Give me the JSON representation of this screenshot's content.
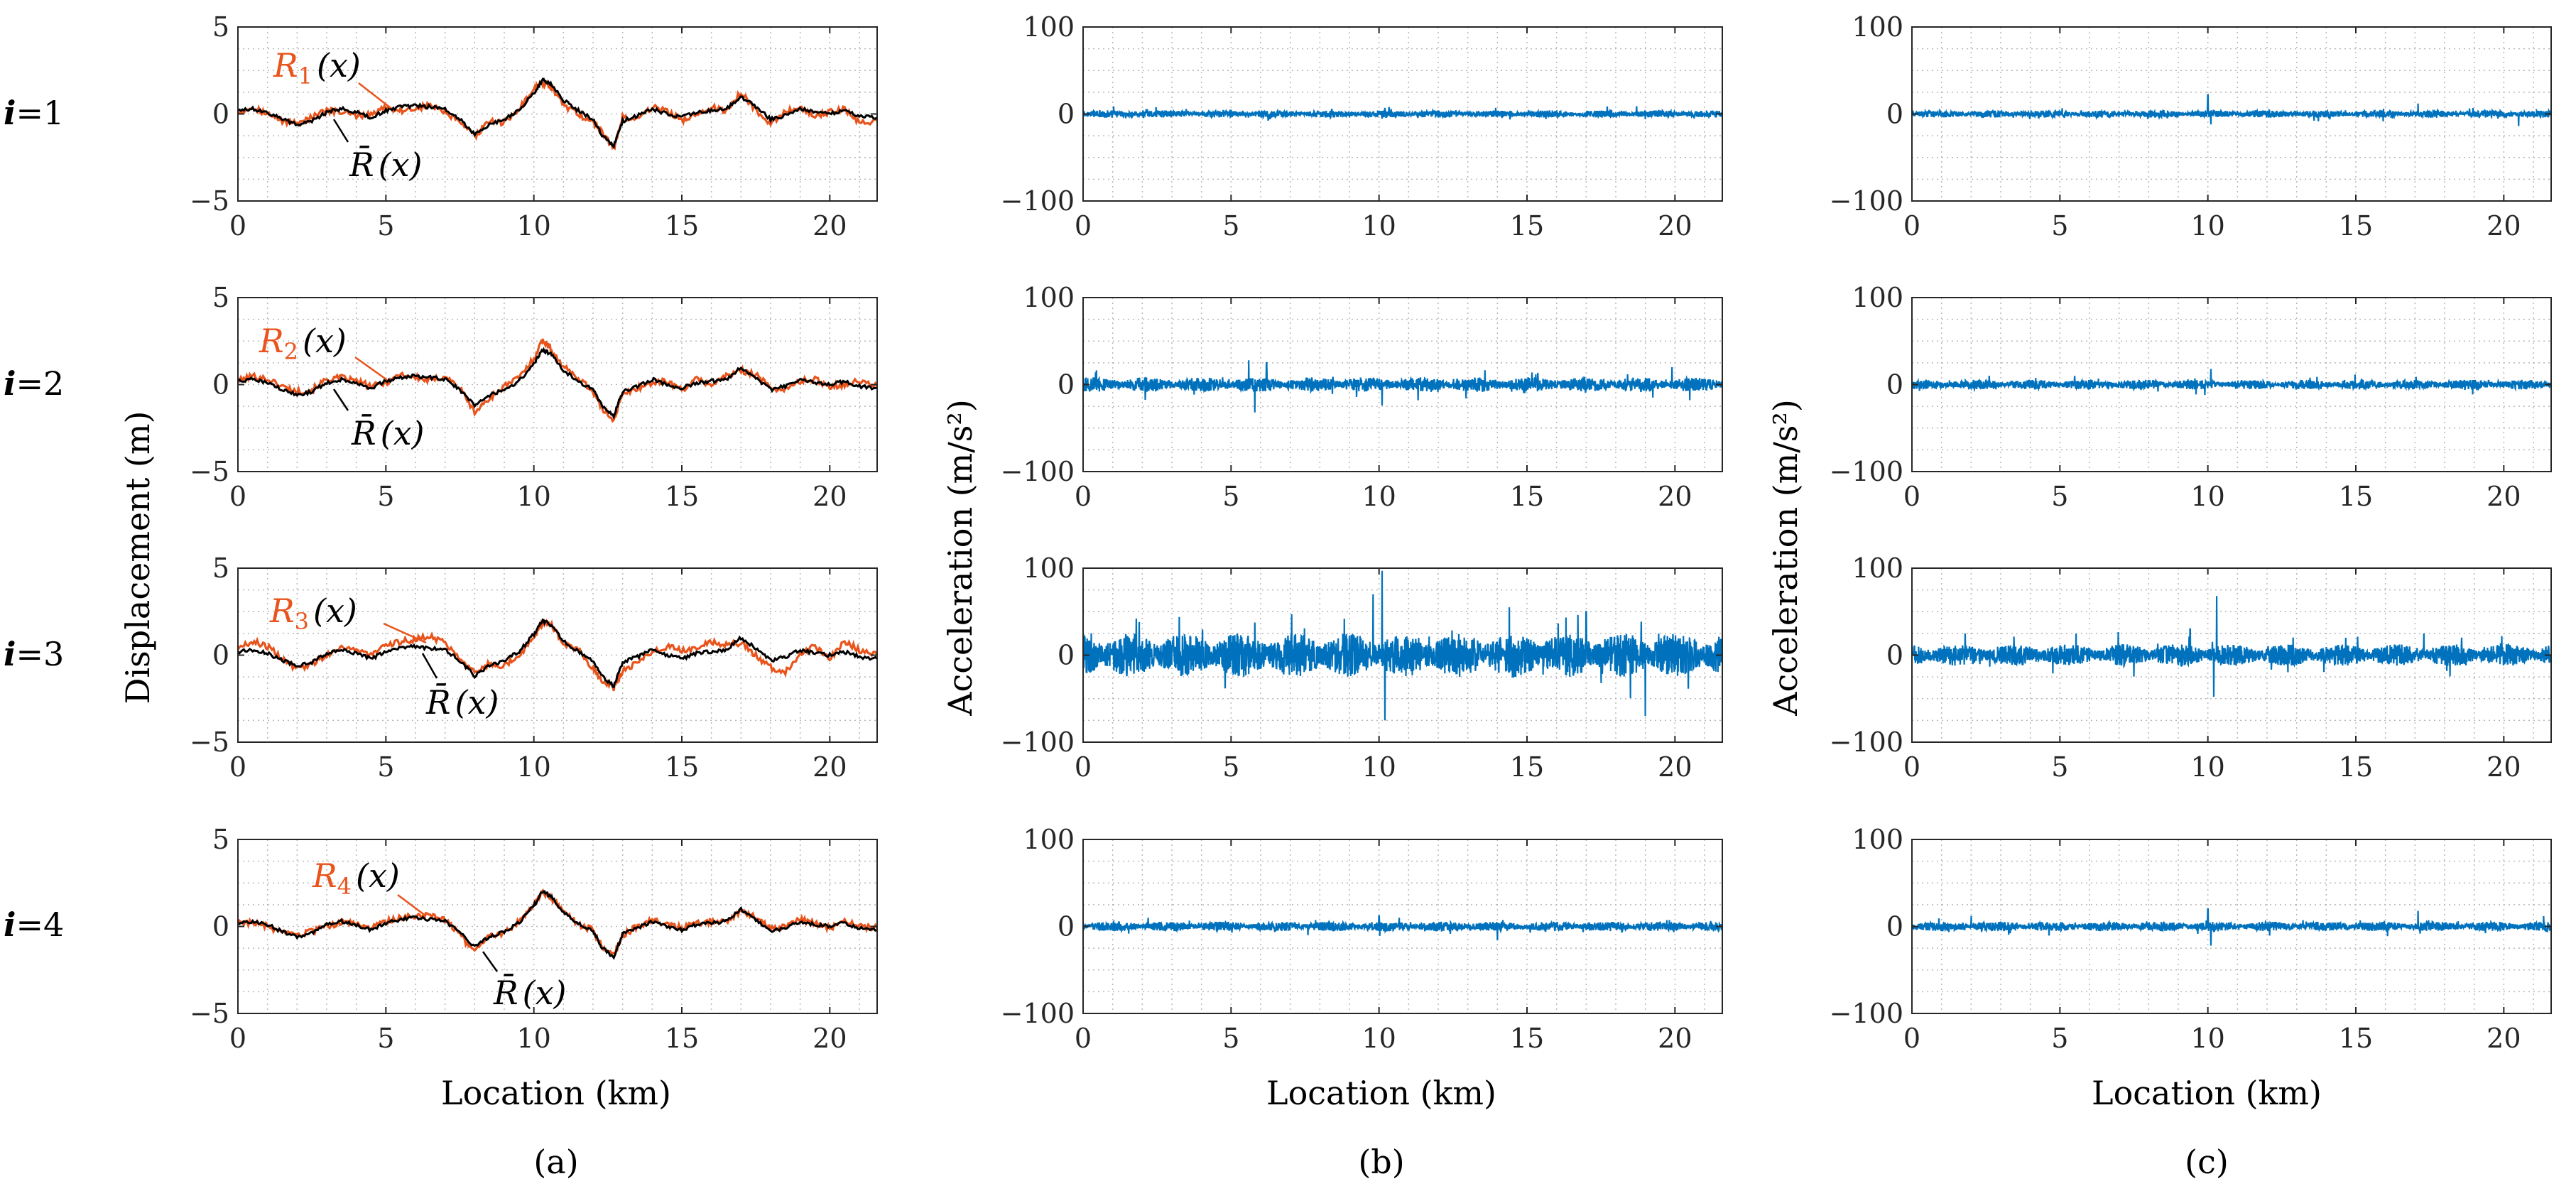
{
  "figure": {
    "panel_labels": [
      "(a)",
      "(b)",
      "(c)"
    ],
    "row_labels": [
      {
        "prefix": "i",
        "suffix": "=1"
      },
      {
        "prefix": "i",
        "suffix": "=2"
      },
      {
        "prefix": "i",
        "suffix": "=3"
      },
      {
        "prefix": "i",
        "suffix": "=4"
      }
    ],
    "colors": {
      "blue": "#0072bd",
      "orange": "#e8541c",
      "black": "#000000",
      "grid": "#b8b8b8"
    }
  },
  "chart_data": [
    {
      "type": "line",
      "panel": "(a)",
      "ylabel": "Displacement (m)",
      "xlabel": "Location (km)",
      "xlim": [
        0,
        21.6
      ],
      "ylim": [
        -5,
        5
      ],
      "xticks": [
        "0",
        "5",
        "10",
        "15",
        "20"
      ],
      "yticks": [
        "-5",
        "0",
        "5"
      ],
      "grid": true,
      "mean_profile": {
        "name": "R̄(x)",
        "x": [
          0,
          0.5,
          1,
          1.5,
          2,
          2.5,
          3,
          3.5,
          4,
          4.5,
          5,
          5.5,
          6,
          6.5,
          7,
          7.5,
          8,
          8.5,
          9,
          9.5,
          10,
          10.3,
          10.6,
          11,
          11.5,
          12,
          12.3,
          12.7,
          13,
          13.5,
          14,
          14.5,
          15,
          15.5,
          16,
          16.5,
          17,
          17.5,
          18,
          18.5,
          19,
          19.5,
          20,
          20.5,
          21,
          21.6
        ],
        "y": [
          0.2,
          0.3,
          0.1,
          -0.3,
          -0.6,
          -0.4,
          0.1,
          0.3,
          0.1,
          -0.2,
          0.2,
          0.4,
          0.5,
          0.4,
          0.3,
          -0.3,
          -1.2,
          -0.6,
          -0.3,
          0.2,
          1.2,
          2.0,
          1.7,
          0.8,
          0.2,
          -0.3,
          -1.2,
          -1.8,
          -0.4,
          -0.1,
          0.3,
          0.0,
          -0.2,
          0.1,
          0.2,
          0.3,
          1.0,
          0.4,
          -0.3,
          -0.1,
          0.3,
          0.1,
          0.0,
          0.2,
          -0.1,
          -0.2
        ]
      },
      "realizations": [
        {
          "name": "R1(x)",
          "x": [
            0,
            0.5,
            1,
            1.5,
            2,
            2.5,
            3,
            3.5,
            4,
            4.5,
            5,
            5.5,
            6,
            6.5,
            7,
            7.5,
            8,
            8.5,
            9,
            9.5,
            10,
            10.3,
            10.6,
            11,
            11.5,
            12,
            12.3,
            12.7,
            13,
            13.5,
            14,
            14.5,
            15,
            15.5,
            16,
            16.5,
            17,
            17.5,
            18,
            18.5,
            19,
            19.5,
            20,
            20.5,
            21,
            21.6
          ],
          "y": [
            0.1,
            0.4,
            0.0,
            -0.4,
            -0.5,
            -0.2,
            0.2,
            0.1,
            -0.1,
            0.0,
            0.4,
            0.2,
            0.3,
            0.5,
            0.1,
            -0.5,
            -1.3,
            -0.4,
            -0.5,
            0.3,
            1.4,
            1.8,
            1.5,
            0.5,
            0.0,
            -0.5,
            -1.0,
            -2.0,
            -0.2,
            -0.3,
            0.4,
            0.2,
            -0.4,
            0.0,
            0.4,
            0.1,
            1.3,
            0.2,
            -0.5,
            0.1,
            0.4,
            -0.1,
            0.1,
            0.3,
            -0.5,
            -0.4
          ]
        },
        {
          "name": "R2(x)",
          "x": [
            0,
            0.5,
            1,
            1.5,
            2,
            2.5,
            3,
            3.5,
            4,
            4.5,
            5,
            5.5,
            6,
            6.5,
            7,
            7.5,
            8,
            8.5,
            9,
            9.5,
            10,
            10.3,
            10.6,
            11,
            11.5,
            12,
            12.3,
            12.7,
            13,
            13.5,
            14,
            14.5,
            15,
            15.5,
            16,
            16.5,
            17,
            17.5,
            18,
            18.5,
            19,
            19.5,
            20,
            20.5,
            21,
            21.6
          ],
          "y": [
            0.2,
            0.5,
            0.3,
            -0.1,
            -0.4,
            -0.3,
            0.3,
            0.4,
            0.2,
            -0.1,
            0.1,
            0.6,
            0.4,
            0.2,
            0.5,
            -0.2,
            -1.6,
            -0.8,
            -0.1,
            0.4,
            1.5,
            2.6,
            2.0,
            1.0,
            0.4,
            -0.4,
            -1.4,
            -2.0,
            -0.6,
            -0.2,
            0.1,
            0.2,
            -0.3,
            0.3,
            0.0,
            0.5,
            0.8,
            0.6,
            -0.2,
            -0.3,
            0.2,
            0.3,
            -0.1,
            0.0,
            0.2,
            -0.1
          ]
        },
        {
          "name": "R3(x)",
          "x": [
            0,
            0.5,
            1,
            1.5,
            2,
            2.5,
            3,
            3.5,
            4,
            4.5,
            5,
            5.5,
            6,
            6.5,
            7,
            7.5,
            8,
            8.5,
            9,
            9.5,
            10,
            10.3,
            10.6,
            11,
            11.5,
            12,
            12.3,
            12.7,
            13,
            13.5,
            14,
            14.5,
            15,
            15.5,
            16,
            16.5,
            17,
            17.5,
            18,
            18.5,
            19,
            19.5,
            20,
            20.5,
            21,
            21.6
          ],
          "y": [
            0.4,
            0.8,
            0.5,
            -0.2,
            -0.8,
            -0.5,
            0.0,
            0.5,
            0.3,
            0.0,
            0.5,
            0.8,
            0.9,
            1.1,
            0.7,
            -0.1,
            -1.0,
            -0.5,
            -0.6,
            0.0,
            1.0,
            1.9,
            1.8,
            0.6,
            0.3,
            -0.8,
            -1.4,
            -1.9,
            -0.9,
            -0.4,
            0.2,
            0.5,
            0.3,
            0.4,
            0.8,
            0.6,
            0.7,
            0.0,
            -0.7,
            -1.0,
            0.1,
            0.5,
            -0.2,
            0.8,
            0.3,
            0.0
          ]
        },
        {
          "name": "R4(x)",
          "x": [
            0,
            0.5,
            1,
            1.5,
            2,
            2.5,
            3,
            3.5,
            4,
            4.5,
            5,
            5.5,
            6,
            6.5,
            7,
            7.5,
            8,
            8.5,
            9,
            9.5,
            10,
            10.3,
            10.6,
            11,
            11.5,
            12,
            12.3,
            12.7,
            13,
            13.5,
            14,
            14.5,
            15,
            15.5,
            16,
            16.5,
            17,
            17.5,
            18,
            18.5,
            19,
            19.5,
            20,
            20.5,
            21,
            21.6
          ],
          "y": [
            0.3,
            0.2,
            0.0,
            -0.4,
            -0.5,
            -0.3,
            0.0,
            0.2,
            0.2,
            -0.1,
            0.3,
            0.5,
            0.6,
            0.7,
            0.4,
            -0.5,
            -1.5,
            -0.5,
            -0.4,
            0.3,
            1.3,
            2.0,
            1.6,
            0.9,
            0.1,
            -0.2,
            -1.1,
            -1.6,
            -0.5,
            0.0,
            0.4,
            0.1,
            -0.1,
            0.2,
            0.3,
            0.2,
            0.9,
            0.5,
            -0.1,
            0.0,
            0.4,
            0.2,
            -0.1,
            0.3,
            0.0,
            -0.1
          ]
        }
      ],
      "annotations": [
        {
          "row": 0,
          "realization": {
            "base": "R",
            "sub": "1",
            "arg": "(x)"
          },
          "mean": {
            "base": "R̄",
            "arg": "(x)"
          }
        },
        {
          "row": 1,
          "realization": {
            "base": "R",
            "sub": "2",
            "arg": "(x)"
          },
          "mean": {
            "base": "R̄",
            "arg": "(x)"
          }
        },
        {
          "row": 2,
          "realization": {
            "base": "R",
            "sub": "3",
            "arg": "(x)"
          },
          "mean": {
            "base": "R̄",
            "arg": "(x)"
          }
        },
        {
          "row": 3,
          "realization": {
            "base": "R",
            "sub": "4",
            "arg": "(x)"
          },
          "mean": {
            "base": "R̄",
            "arg": "(x)"
          }
        }
      ]
    },
    {
      "type": "line",
      "panel": "(b)",
      "ylabel": "Acceleration (m/s²)",
      "xlabel": "Location (km)",
      "xlim": [
        0,
        21.6
      ],
      "ylim": [
        -100,
        100
      ],
      "xticks": [
        "0",
        "5",
        "10",
        "15",
        "20"
      ],
      "yticks": [
        "-100",
        "0",
        "100"
      ],
      "grid": true,
      "series": [
        {
          "row": 0,
          "base_amplitude": 3,
          "spikes": [
            {
              "x": 5.0,
              "y": 5
            },
            {
              "x": 10.2,
              "y": 7
            },
            {
              "x": 18.7,
              "y": 9
            },
            {
              "x": 19.0,
              "y": -6
            }
          ]
        },
        {
          "row": 1,
          "base_amplitude": 6,
          "spikes": [
            {
              "x": 5.6,
              "y": 28
            },
            {
              "x": 5.8,
              "y": -32
            },
            {
              "x": 6.2,
              "y": 25
            },
            {
              "x": 10.1,
              "y": -24
            },
            {
              "x": 19.9,
              "y": 20
            },
            {
              "x": 20.5,
              "y": -18
            }
          ]
        },
        {
          "row": 2,
          "base_amplitude": 18,
          "spikes": [
            {
              "x": 10.1,
              "y": 97
            },
            {
              "x": 10.2,
              "y": -75
            },
            {
              "x": 9.8,
              "y": 70
            },
            {
              "x": 14.4,
              "y": 55
            },
            {
              "x": 19.0,
              "y": -70
            },
            {
              "x": 17.0,
              "y": 50
            },
            {
              "x": 1.8,
              "y": 42
            }
          ]
        },
        {
          "row": 3,
          "base_amplitude": 4,
          "spikes": [
            {
              "x": 2.2,
              "y": 10
            },
            {
              "x": 10.0,
              "y": 12
            },
            {
              "x": 14.0,
              "y": -16
            },
            {
              "x": 7.6,
              "y": -10
            }
          ]
        }
      ]
    },
    {
      "type": "line",
      "panel": "(c)",
      "ylabel": "Acceleration (m/s²)",
      "xlabel": "Location (km)",
      "xlim": [
        0,
        21.6
      ],
      "ylim": [
        -100,
        100
      ],
      "xticks": [
        "0",
        "5",
        "10",
        "15",
        "20"
      ],
      "yticks": [
        "-100",
        "0",
        "100"
      ],
      "grid": true,
      "series": [
        {
          "row": 0,
          "base_amplitude": 3,
          "spikes": [
            {
              "x": 10.0,
              "y": 22
            },
            {
              "x": 10.1,
              "y": -12
            },
            {
              "x": 17.1,
              "y": 12
            },
            {
              "x": 20.5,
              "y": -14
            }
          ]
        },
        {
          "row": 1,
          "base_amplitude": 4,
          "spikes": [
            {
              "x": 10.1,
              "y": 18
            },
            {
              "x": 9.9,
              "y": -12
            },
            {
              "x": 5.5,
              "y": 10
            }
          ]
        },
        {
          "row": 2,
          "base_amplitude": 9,
          "spikes": [
            {
              "x": 10.3,
              "y": 68
            },
            {
              "x": 10.2,
              "y": -48
            },
            {
              "x": 9.4,
              "y": 30
            },
            {
              "x": 1.8,
              "y": 25
            },
            {
              "x": 17.3,
              "y": 25
            }
          ]
        },
        {
          "row": 3,
          "base_amplitude": 4,
          "spikes": [
            {
              "x": 10.0,
              "y": 20
            },
            {
              "x": 10.1,
              "y": -22
            },
            {
              "x": 17.1,
              "y": 18
            },
            {
              "x": 2.0,
              "y": 12
            }
          ]
        }
      ]
    }
  ]
}
